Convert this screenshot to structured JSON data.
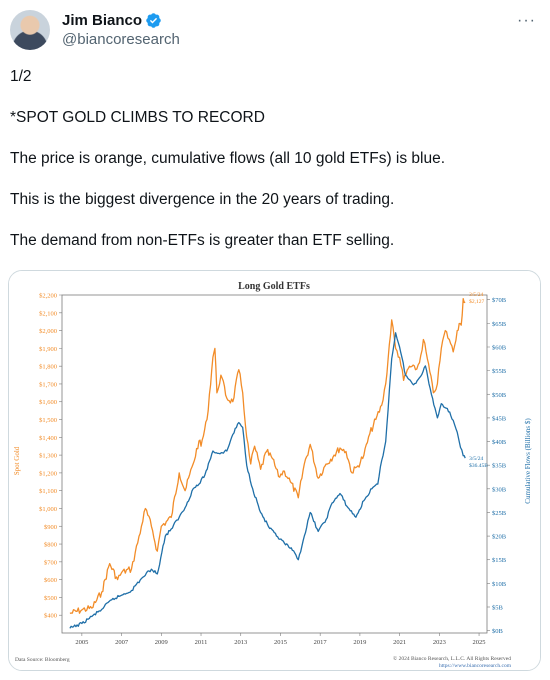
{
  "author": {
    "name": "Jim Bianco",
    "handle": "@biancoresearch",
    "avatar_icon": "user-avatar",
    "verified_icon": "verified-badge-icon",
    "verified_color": "#1d9bf0"
  },
  "more_label": "···",
  "tweet": {
    "lines": [
      "1/2",
      "*SPOT GOLD CLIMBS TO RECORD",
      "The price is orange, cumulative flows (all 10 gold ETFs)  is blue.",
      "This is the biggest divergence in the 20 years of trading.",
      "The demand from non-ETFs is greater than ETF selling."
    ]
  },
  "chart_data": {
    "type": "line",
    "title": "Long Gold ETFs",
    "ylabel_left": "Spot Gold",
    "ylabel_right": "Cumulative Flows (Billions $)",
    "x_ticks": [
      "2005",
      "2007",
      "2009",
      "2011",
      "2013",
      "2015",
      "2017",
      "2019",
      "2021",
      "2023",
      "2025"
    ],
    "xlim": [
      2004.0,
      2025.4
    ],
    "ylim_left": [
      300,
      2200
    ],
    "ylim_right": [
      -0.5,
      71
    ],
    "left_ticks": [
      "$2,200",
      "$2,100",
      "$2,000",
      "$1,900",
      "$1,800",
      "$1,700",
      "$1,600",
      "$1,500",
      "$1,400",
      "$1,300",
      "$1,200",
      "$1,100",
      "$1,000",
      "$900",
      "$800",
      "$700",
      "$600",
      "$500",
      "$400"
    ],
    "left_tick_values": [
      2200,
      2100,
      2000,
      1900,
      1800,
      1700,
      1600,
      1500,
      1400,
      1300,
      1200,
      1100,
      1000,
      900,
      800,
      700,
      600,
      500,
      400
    ],
    "right_ticks": [
      "$70B",
      "$65B",
      "$60B",
      "$55B",
      "$50B",
      "$45B",
      "$40B",
      "$35B",
      "$30B",
      "$25B",
      "$20B",
      "$15B",
      "$10B",
      "$5B",
      "$0B"
    ],
    "right_tick_values": [
      70,
      65,
      60,
      55,
      50,
      45,
      40,
      35,
      30,
      25,
      20,
      15,
      10,
      5,
      0
    ],
    "series": [
      {
        "name": "Spot Gold",
        "axis": "left",
        "color": "#f28c28",
        "points": [
          [
            2004.4,
            410
          ],
          [
            2005.0,
            430
          ],
          [
            2005.5,
            440
          ],
          [
            2006.0,
            530
          ],
          [
            2006.4,
            690
          ],
          [
            2006.8,
            600
          ],
          [
            2007.0,
            640
          ],
          [
            2007.5,
            660
          ],
          [
            2008.0,
            900
          ],
          [
            2008.2,
            1000
          ],
          [
            2008.5,
            900
          ],
          [
            2008.8,
            760
          ],
          [
            2009.0,
            900
          ],
          [
            2009.5,
            950
          ],
          [
            2009.9,
            1200
          ],
          [
            2010.2,
            1100
          ],
          [
            2010.6,
            1250
          ],
          [
            2010.9,
            1380
          ],
          [
            2011.0,
            1350
          ],
          [
            2011.3,
            1500
          ],
          [
            2011.6,
            1850
          ],
          [
            2011.7,
            1900
          ],
          [
            2011.8,
            1650
          ],
          [
            2012.0,
            1750
          ],
          [
            2012.3,
            1620
          ],
          [
            2012.6,
            1600
          ],
          [
            2012.9,
            1780
          ],
          [
            2013.1,
            1650
          ],
          [
            2013.3,
            1400
          ],
          [
            2013.5,
            1250
          ],
          [
            2013.7,
            1350
          ],
          [
            2014.0,
            1220
          ],
          [
            2014.3,
            1320
          ],
          [
            2014.6,
            1280
          ],
          [
            2014.9,
            1180
          ],
          [
            2015.2,
            1210
          ],
          [
            2015.5,
            1150
          ],
          [
            2015.9,
            1060
          ],
          [
            2016.2,
            1250
          ],
          [
            2016.5,
            1360
          ],
          [
            2016.9,
            1170
          ],
          [
            2017.3,
            1250
          ],
          [
            2017.7,
            1300
          ],
          [
            2018.0,
            1340
          ],
          [
            2018.3,
            1320
          ],
          [
            2018.6,
            1200
          ],
          [
            2018.9,
            1240
          ],
          [
            2019.2,
            1300
          ],
          [
            2019.5,
            1420
          ],
          [
            2019.8,
            1500
          ],
          [
            2020.1,
            1580
          ],
          [
            2020.3,
            1700
          ],
          [
            2020.6,
            2060
          ],
          [
            2020.8,
            1900
          ],
          [
            2021.0,
            1850
          ],
          [
            2021.2,
            1720
          ],
          [
            2021.5,
            1800
          ],
          [
            2021.8,
            1780
          ],
          [
            2022.0,
            1820
          ],
          [
            2022.2,
            1950
          ],
          [
            2022.4,
            1840
          ],
          [
            2022.7,
            1650
          ],
          [
            2022.9,
            1700
          ],
          [
            2023.1,
            1900
          ],
          [
            2023.3,
            2000
          ],
          [
            2023.5,
            1950
          ],
          [
            2023.7,
            1880
          ],
          [
            2023.9,
            2000
          ],
          [
            2024.0,
            2040
          ],
          [
            2024.1,
            2030
          ],
          [
            2024.2,
            2180
          ],
          [
            2024.3,
            2160
          ]
        ]
      },
      {
        "name": "Cumulative Flows",
        "axis": "right",
        "color": "#1f6fa8",
        "points": [
          [
            2004.4,
            0.5
          ],
          [
            2005.0,
            1.5
          ],
          [
            2005.5,
            3.0
          ],
          [
            2006.0,
            4.5
          ],
          [
            2006.5,
            6.5
          ],
          [
            2007.0,
            7.5
          ],
          [
            2007.5,
            8.5
          ],
          [
            2008.0,
            11.0
          ],
          [
            2008.5,
            13.0
          ],
          [
            2008.8,
            12.0
          ],
          [
            2009.2,
            20.0
          ],
          [
            2009.5,
            21.5
          ],
          [
            2009.9,
            24.0
          ],
          [
            2010.2,
            26.0
          ],
          [
            2010.6,
            30.0
          ],
          [
            2010.9,
            31.0
          ],
          [
            2011.2,
            33.0
          ],
          [
            2011.6,
            38.0
          ],
          [
            2011.9,
            37.5
          ],
          [
            2012.3,
            38.0
          ],
          [
            2012.6,
            41.5
          ],
          [
            2012.9,
            44.0
          ],
          [
            2013.1,
            43.0
          ],
          [
            2013.3,
            35.0
          ],
          [
            2013.6,
            30.0
          ],
          [
            2014.0,
            25.0
          ],
          [
            2014.4,
            22.0
          ],
          [
            2014.8,
            20.0
          ],
          [
            2015.2,
            18.5
          ],
          [
            2015.6,
            17.0
          ],
          [
            2015.9,
            15.0
          ],
          [
            2016.2,
            20.0
          ],
          [
            2016.5,
            25.0
          ],
          [
            2016.9,
            21.0
          ],
          [
            2017.3,
            23.5
          ],
          [
            2017.6,
            27.0
          ],
          [
            2018.0,
            29.0
          ],
          [
            2018.4,
            26.0
          ],
          [
            2018.8,
            24.0
          ],
          [
            2019.2,
            27.5
          ],
          [
            2019.6,
            30.0
          ],
          [
            2019.9,
            31.0
          ],
          [
            2020.1,
            36.0
          ],
          [
            2020.3,
            40.0
          ],
          [
            2020.6,
            57.5
          ],
          [
            2020.8,
            63.0
          ],
          [
            2021.0,
            60.0
          ],
          [
            2021.3,
            54.0
          ],
          [
            2021.7,
            52.0
          ],
          [
            2022.0,
            53.5
          ],
          [
            2022.3,
            56.0
          ],
          [
            2022.6,
            50.0
          ],
          [
            2022.9,
            45.0
          ],
          [
            2023.1,
            48.0
          ],
          [
            2023.4,
            47.0
          ],
          [
            2023.7,
            44.5
          ],
          [
            2023.9,
            42.0
          ],
          [
            2024.0,
            40.0
          ],
          [
            2024.2,
            37.0
          ],
          [
            2024.3,
            36.5
          ]
        ]
      }
    ],
    "annotations": {
      "price_date": "3/5/24",
      "price_value": "$2,127",
      "flows_date": "3/5/24",
      "flows_value": "$36.45B"
    },
    "grid": false,
    "source_left": "Data Source: Bloomberg",
    "source_right_1": "© 2024 Bianco Research, L.L.C. All Rights Reserved",
    "source_right_2": "https://www.biancoresearch.com"
  }
}
